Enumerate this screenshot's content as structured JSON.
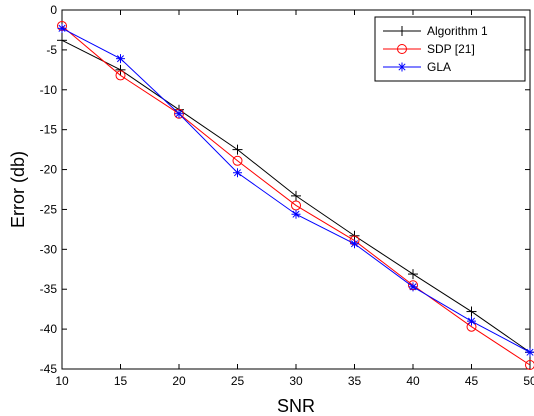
{
  "chart_data": {
    "type": "line",
    "xlabel": "SNR",
    "ylabel": "Error (db)",
    "xlim": [
      10,
      50
    ],
    "ylim": [
      -45,
      0
    ],
    "xticks": [
      10,
      15,
      20,
      25,
      30,
      35,
      40,
      45,
      50
    ],
    "yticks": [
      0,
      -5,
      -10,
      -15,
      -20,
      -25,
      -30,
      -35,
      -40,
      -45
    ],
    "grid": false,
    "legend_position": "top-right",
    "x": [
      10,
      15,
      20,
      25,
      30,
      35,
      40,
      45,
      50
    ],
    "series": [
      {
        "name": "Algorithm 1",
        "color": "#000000",
        "marker": "plus",
        "values": [
          -3.8,
          -7.5,
          -12.5,
          -17.5,
          -23.3,
          -28.3,
          -33.1,
          -37.8,
          -42.9
        ]
      },
      {
        "name": "SDP [21]",
        "color": "#ff0000",
        "marker": "circle",
        "values": [
          -2.0,
          -8.2,
          -13.0,
          -18.9,
          -24.5,
          -28.9,
          -34.5,
          -39.7,
          -44.5
        ]
      },
      {
        "name": "GLA",
        "color": "#0000ff",
        "marker": "star",
        "values": [
          -2.3,
          -6.1,
          -13.0,
          -20.4,
          -25.6,
          -29.3,
          -34.7,
          -39.0,
          -42.9
        ]
      }
    ]
  }
}
